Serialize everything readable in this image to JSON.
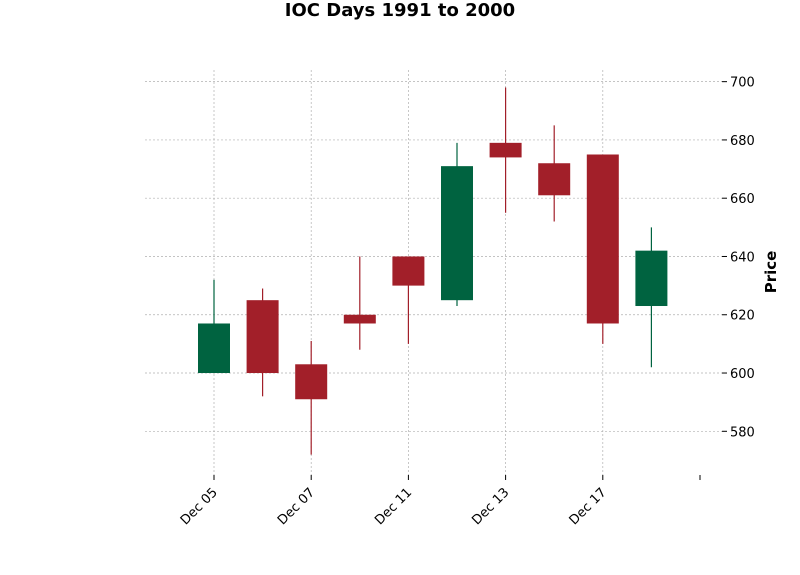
{
  "chart_data": {
    "type": "candlestick",
    "title": "IOC Days 1991 to 2000",
    "xlabel": "",
    "ylabel": "Price",
    "ylim": [
      565,
      704
    ],
    "y_ticks": [
      580,
      600,
      620,
      640,
      660,
      680,
      700
    ],
    "x_tick_labels": [
      "Dec 05",
      "Dec 07",
      "Dec 11",
      "Dec 13",
      "Dec 17"
    ],
    "grid": true,
    "colors": {
      "up": "#006340",
      "down": "#a21f29",
      "grid": "#b0b0b0"
    },
    "candles": [
      {
        "open": 600,
        "high": 632,
        "low": 600,
        "close": 617
      },
      {
        "open": 625,
        "high": 629,
        "low": 592,
        "close": 600
      },
      {
        "open": 603,
        "high": 611,
        "low": 572,
        "close": 591
      },
      {
        "open": 620,
        "high": 640,
        "low": 608,
        "close": 617
      },
      {
        "open": 640,
        "high": 640,
        "low": 610,
        "close": 630
      },
      {
        "open": 625,
        "high": 679,
        "low": 623,
        "close": 671
      },
      {
        "open": 679,
        "high": 698,
        "low": 655,
        "close": 674
      },
      {
        "open": 672,
        "high": 685,
        "low": 652,
        "close": 661
      },
      {
        "open": 675,
        "high": 675,
        "low": 610,
        "close": 617
      },
      {
        "open": 623,
        "high": 650,
        "low": 602,
        "close": 642
      }
    ]
  }
}
